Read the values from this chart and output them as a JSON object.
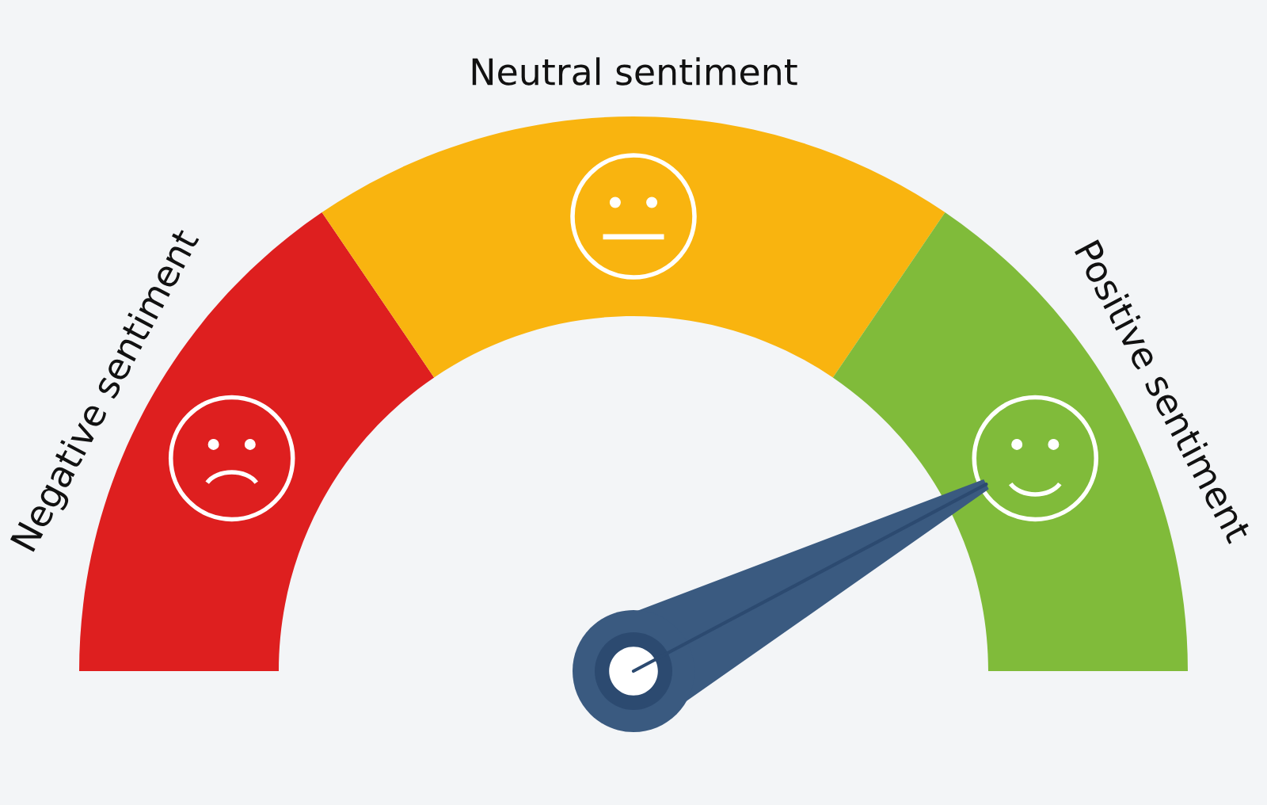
{
  "chart_data": {
    "type": "donut",
    "categories": [
      "Negative sentiment",
      "Neutral sentiment",
      "Positive sentiment"
    ],
    "values": [
      31,
      38,
      31
    ],
    "colors": [
      "#de1f1f",
      "#f9b40f",
      "#80bb3a"
    ],
    "needle": "Positive sentiment"
  }
}
